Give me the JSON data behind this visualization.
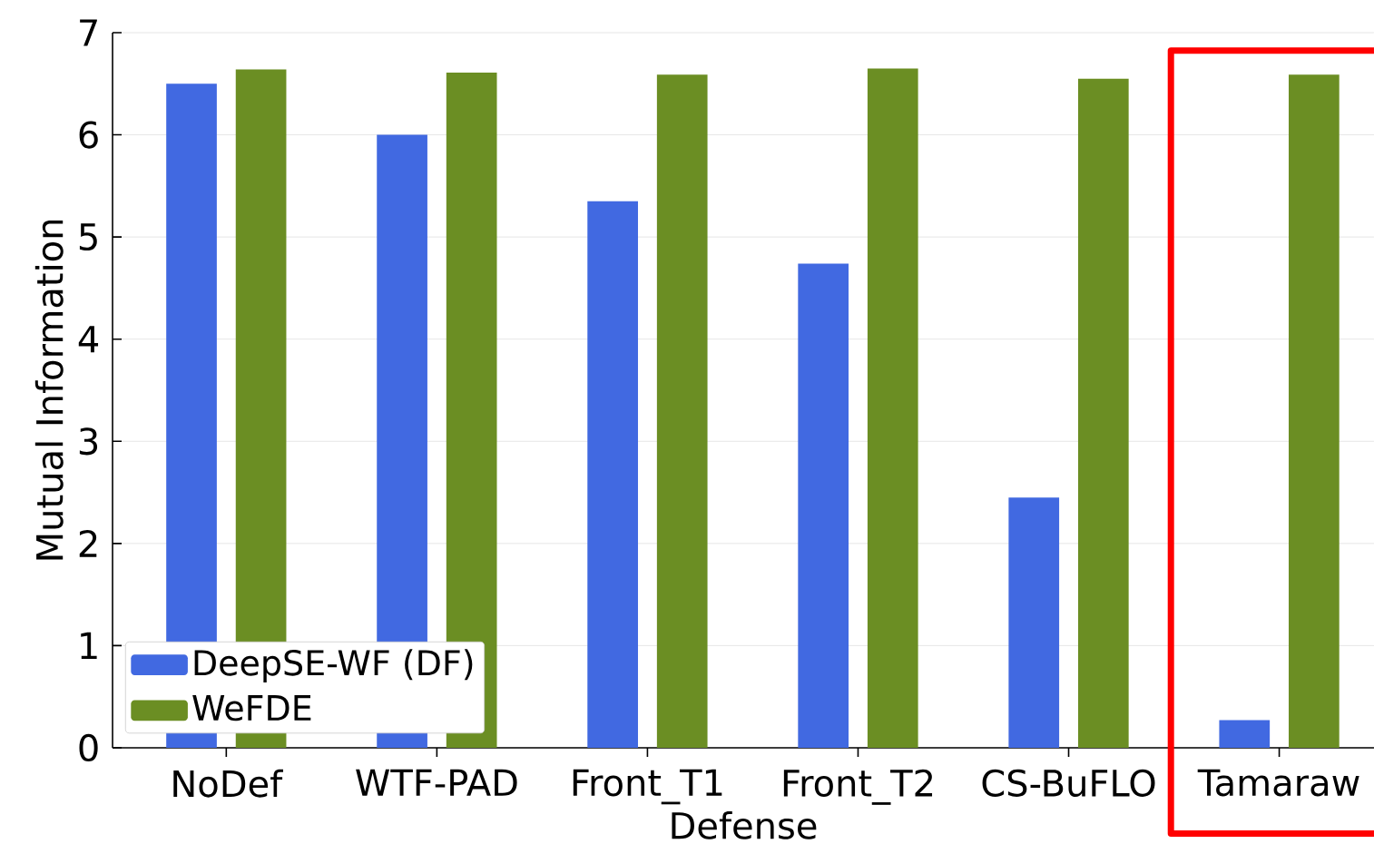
{
  "chart_data": {
    "type": "bar",
    "xlabel": "Defense",
    "ylabel": "Mutual Information",
    "categories": [
      "NoDef",
      "WTF-PAD",
      "Front_T1",
      "Front_T2",
      "CS-BuFLO",
      "Tamaraw"
    ],
    "series": [
      {
        "name": "DeepSE-WF (DF)",
        "color": "#4169e1",
        "values": [
          6.5,
          6.0,
          5.35,
          4.74,
          2.45,
          0.27
        ]
      },
      {
        "name": "WeFDE",
        "color": "#6b8e23",
        "values": [
          6.64,
          6.61,
          6.59,
          6.65,
          6.55,
          6.59
        ]
      }
    ],
    "ylim": [
      0,
      7
    ],
    "yticks": [
      0,
      1,
      2,
      3,
      4,
      5,
      6,
      7
    ],
    "grid": "y",
    "legend": "bottom left"
  }
}
